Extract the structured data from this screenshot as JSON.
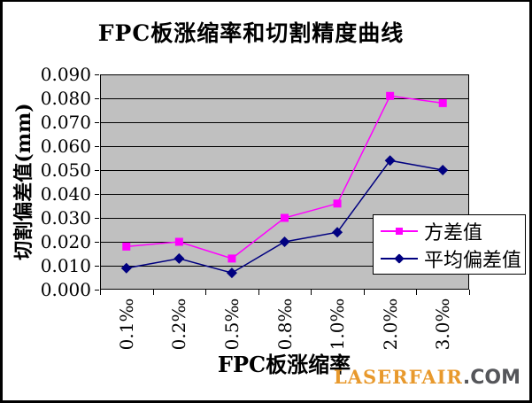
{
  "chart_data": {
    "type": "line",
    "title": "FPC板涨缩率和切割精度曲线",
    "xlabel": "FPC板涨缩率",
    "ylabel": "切割偏差值(mm)",
    "categories": [
      "0.1‰",
      "0.2‰",
      "0.5‰",
      "0.8‰",
      "1.0‰",
      "2.0‰",
      "3.0‰"
    ],
    "series": [
      {
        "name": "方差值",
        "color": "#FF00FF",
        "marker": "square",
        "values": [
          0.018,
          0.02,
          0.013,
          0.03,
          0.036,
          0.081,
          0.078
        ]
      },
      {
        "name": "平均偏差值",
        "color": "#000080",
        "marker": "diamond",
        "values": [
          0.009,
          0.013,
          0.007,
          0.02,
          0.024,
          0.054,
          0.05
        ]
      }
    ],
    "ylim": [
      0,
      0.09
    ],
    "y_tick_step": 0.01,
    "y_tick_labels": [
      "0.000",
      "0.010",
      "0.020",
      "0.030",
      "0.040",
      "0.050",
      "0.060",
      "0.070",
      "0.080",
      "0.090"
    ],
    "grid": "horizontal",
    "plot_bg_color": "#C0C0C0",
    "gridline_color": "#000000",
    "legend_position": "overlay-right-middle",
    "legend_border_color": "#000000"
  },
  "watermark": {
    "brand": "LASERFAIR",
    "suffix": ".COM",
    "brand_color": "#E8992C",
    "suffix_color": "#55565A"
  }
}
